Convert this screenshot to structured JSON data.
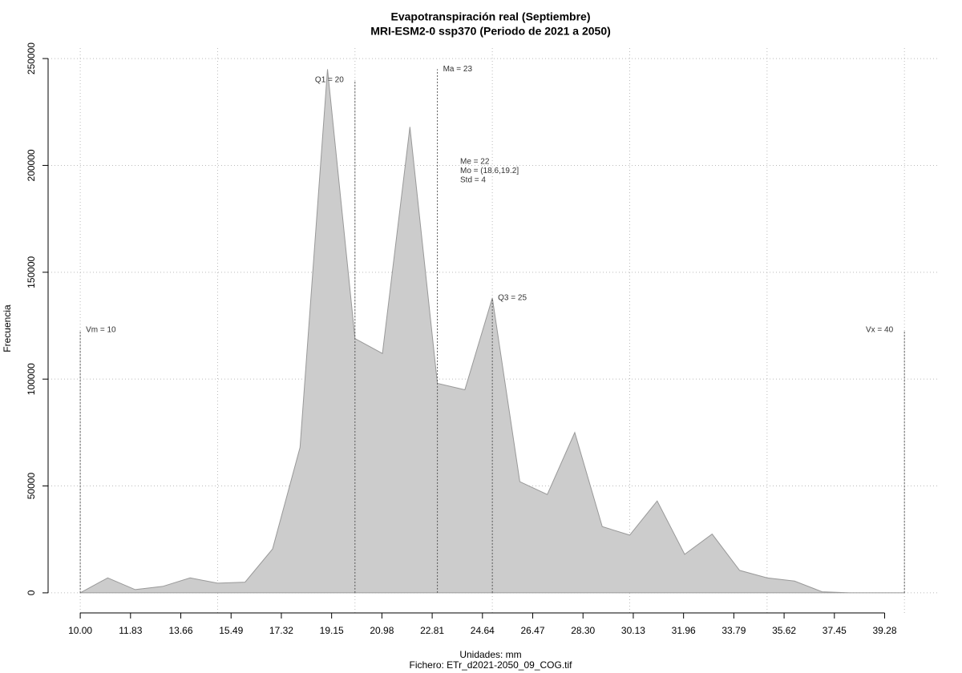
{
  "chart_data": {
    "type": "area",
    "title": "Evapotranspiración real (Septiembre)",
    "subtitle": "MRI-ESM2-0 ssp370 (Periodo de 2021 a 2050)",
    "x_label": "Unidades: mm",
    "caption": "Fichero: ETr_d2021-2050_09_COG.tif",
    "y_label": "Frecuencia",
    "x": [
      10,
      11,
      12,
      13,
      14,
      15,
      16,
      17,
      18,
      19,
      20,
      21,
      22,
      23,
      24,
      25,
      26,
      27,
      28,
      29,
      30,
      31,
      32,
      33,
      34,
      35,
      36,
      37,
      38,
      39,
      40
    ],
    "values": [
      0,
      7000,
      1500,
      3000,
      7000,
      4500,
      5000,
      20500,
      68000,
      245000,
      119000,
      112000,
      218000,
      98000,
      95000,
      138000,
      52000,
      46000,
      75000,
      31000,
      27000,
      43000,
      18000,
      27500,
      10500,
      7000,
      5500,
      500,
      0,
      0,
      0
    ],
    "color": "#cccccc",
    "xlim": [
      8.83,
      41.22
    ],
    "ylim": [
      -9400,
      254900
    ],
    "xticks": [
      {
        "value": 10,
        "label": "10.00"
      },
      11.83,
      13.66,
      15.49,
      17.32,
      19.15,
      20.98,
      22.81,
      24.64,
      26.47,
      {
        "value": 28.3,
        "label": "28.30"
      },
      30.13,
      31.96,
      33.79,
      35.62,
      37.45,
      39.28
    ],
    "yticks": [
      0,
      50000,
      100000,
      150000,
      200000,
      250000
    ],
    "xgrid": [
      10,
      15,
      20,
      25,
      30,
      35,
      40
    ],
    "grid": true,
    "reference_lines": [
      {
        "label": "Vm = 10",
        "x": 10,
        "top": 123000,
        "align": "right"
      },
      {
        "label": "Q1 = 20",
        "x": 20,
        "top": 240000,
        "align": "left"
      },
      {
        "label": "Ma = 23",
        "x": 23,
        "top": 245000,
        "align": "right"
      },
      {
        "label": "Q3 = 25",
        "x": 25,
        "top": 138000,
        "align": "right"
      },
      {
        "label": "Vx = 40",
        "x": 40,
        "top": 123000,
        "align": "left"
      }
    ],
    "stats": [
      "Me = 22",
      "Mo = (18.6,19.2]",
      "Std = 4"
    ]
  }
}
